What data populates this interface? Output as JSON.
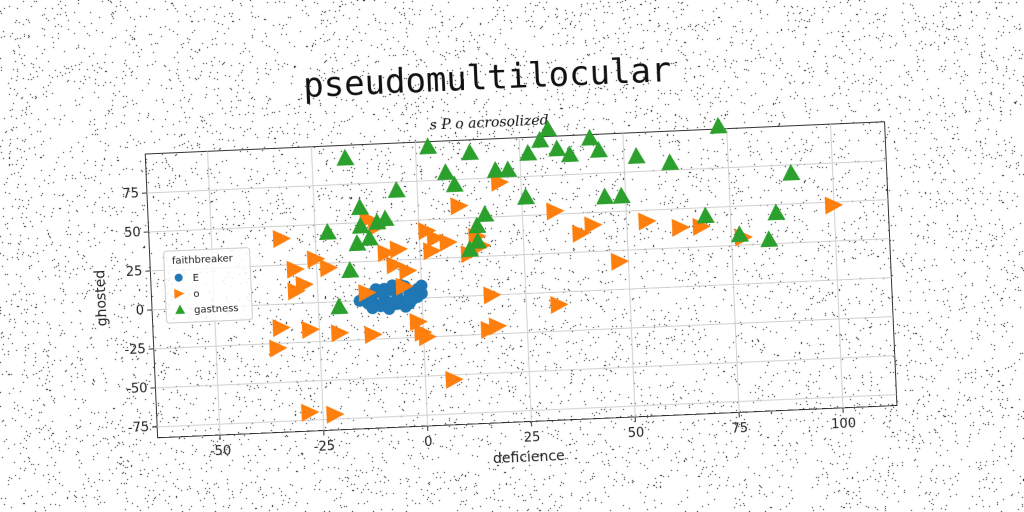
{
  "chart_data": {
    "type": "scatter",
    "title": "pseudomultilocular",
    "subtitle": "s P o acrosolized",
    "xlabel": "deficience",
    "ylabel": "ghosted",
    "xlim": [
      -65,
      113
    ],
    "ylim": [
      -82,
      100
    ],
    "xticks": [
      -50,
      -25,
      0,
      25,
      50,
      75,
      100
    ],
    "yticks": [
      -75,
      -50,
      -25,
      0,
      25,
      50,
      75
    ],
    "grid": true,
    "legend": {
      "title": "faithbreaker",
      "placement": "center-left",
      "entries": [
        "E",
        "o",
        "gastness"
      ]
    },
    "series": [
      {
        "name": "E",
        "marker": "circle",
        "color": "#1f77b4",
        "points": [
          [
            -14,
            2
          ],
          [
            -13,
            4
          ],
          [
            -12,
            0
          ],
          [
            -11,
            -3
          ],
          [
            -10,
            5
          ],
          [
            -9,
            1
          ],
          [
            -8,
            -2
          ],
          [
            -7,
            6
          ],
          [
            -6,
            3
          ],
          [
            -5,
            -1
          ],
          [
            -4,
            8
          ],
          [
            -3,
            4
          ],
          [
            -2,
            0
          ],
          [
            -1,
            6
          ],
          [
            0,
            3
          ],
          [
            -12,
            -5
          ],
          [
            -10,
            -4
          ],
          [
            -8,
            -6
          ],
          [
            -6,
            -3
          ],
          [
            -4,
            -5
          ],
          [
            -2,
            2
          ],
          [
            -9,
            7
          ],
          [
            -7,
            9
          ],
          [
            -5,
            9
          ],
          [
            -3,
            -3
          ],
          [
            -1,
            1
          ],
          [
            -11,
            7
          ],
          [
            -13,
            -2
          ],
          [
            -15,
            0
          ],
          [
            0,
            8
          ]
        ]
      },
      {
        "name": "o",
        "marker": "triangle-right",
        "color": "#ff7f0e",
        "points": [
          [
            -33,
            42
          ],
          [
            -30,
            22
          ],
          [
            -28,
            12
          ],
          [
            -25,
            28
          ],
          [
            -22,
            22
          ],
          [
            -34,
            -15
          ],
          [
            -30,
            8
          ],
          [
            -27,
            -17
          ],
          [
            -20,
            -20
          ],
          [
            -13,
            5
          ],
          [
            -12,
            52
          ],
          [
            -10,
            47
          ],
          [
            -8,
            30
          ],
          [
            -6,
            22
          ],
          [
            -5,
            32
          ],
          [
            -4,
            8
          ],
          [
            -3,
            18
          ],
          [
            -1,
            -15
          ],
          [
            0,
            -22
          ],
          [
            1,
            -25
          ],
          [
            2,
            43
          ],
          [
            3,
            30
          ],
          [
            4,
            38
          ],
          [
            7,
            35
          ],
          [
            10,
            58
          ],
          [
            12,
            27
          ],
          [
            14,
            38
          ],
          [
            15,
            32
          ],
          [
            16,
            -22
          ],
          [
            17,
            0
          ],
          [
            18,
            -20
          ],
          [
            20,
            72
          ],
          [
            33,
            52
          ],
          [
            33,
            -8
          ],
          [
            39,
            37
          ],
          [
            42,
            42
          ],
          [
            48,
            18
          ],
          [
            55,
            43
          ],
          [
            63,
            38
          ],
          [
            68,
            38
          ],
          [
            78,
            30
          ],
          [
            100,
            48
          ],
          [
            -35,
            -28
          ],
          [
            -28,
            -70
          ],
          [
            -22,
            -72
          ],
          [
            7,
            -53
          ],
          [
            -12,
            -22
          ]
        ]
      },
      {
        "name": "gastness",
        "marker": "triangle-up",
        "color": "#2ca02c",
        "points": [
          [
            -17,
            92
          ],
          [
            -22,
            45
          ],
          [
            -20,
            -3
          ],
          [
            -17,
            20
          ],
          [
            -15,
            37
          ],
          [
            -14,
            48
          ],
          [
            -10,
            50
          ],
          [
            -5,
            70
          ],
          [
            3,
            97
          ],
          [
            7,
            80
          ],
          [
            9,
            72
          ],
          [
            13,
            92
          ],
          [
            14,
            45
          ],
          [
            14,
            35
          ],
          [
            19,
            80
          ],
          [
            22,
            80
          ],
          [
            27,
            90
          ],
          [
            30,
            98
          ],
          [
            32,
            105
          ],
          [
            34,
            92
          ],
          [
            37,
            88
          ],
          [
            42,
            98
          ],
          [
            44,
            90
          ],
          [
            45,
            60
          ],
          [
            49,
            60
          ],
          [
            53,
            85
          ],
          [
            61,
            80
          ],
          [
            69,
            45
          ],
          [
            73,
            102
          ],
          [
            77,
            32
          ],
          [
            84,
            28
          ],
          [
            86,
            45
          ],
          [
            90,
            70
          ],
          [
            -14,
            60
          ],
          [
            -12,
            40
          ],
          [
            -8,
            52
          ],
          [
            12,
            30
          ],
          [
            16,
            52
          ],
          [
            26,
            62
          ]
        ]
      }
    ]
  }
}
